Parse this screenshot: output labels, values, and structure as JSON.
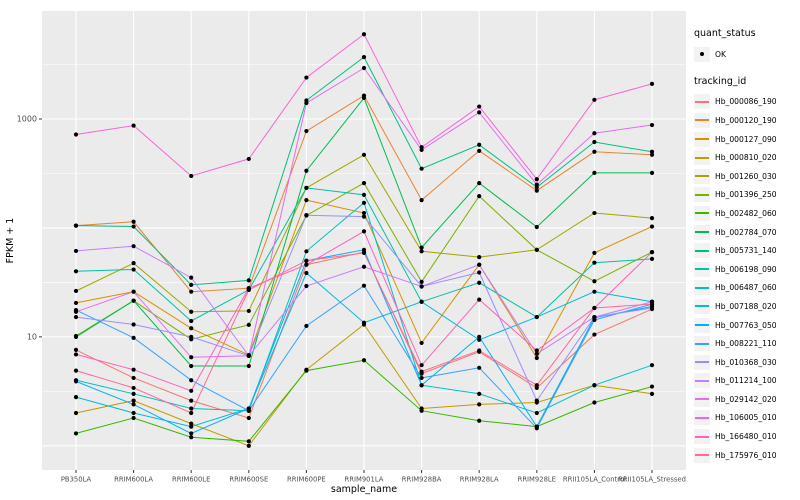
{
  "chart_data": {
    "type": "line",
    "title": "",
    "xlabel": "sample_name",
    "ylabel": "FPKM + 1",
    "y_scale": "log10",
    "y_tick_labels": [
      "10",
      "1000"
    ],
    "y_ticks": [
      10,
      1000
    ],
    "y_major_gridlines": [
      1,
      10,
      100,
      1000
    ],
    "y_minor_gridlines": [
      3.162,
      31.62,
      316.2,
      3162
    ],
    "ylim": [
      0.6,
      9800
    ],
    "grid": true,
    "legend_position": "right",
    "panel_bg": "#EBEBEB",
    "grid_color": "#FFFFFF",
    "point_color": "#000000",
    "tick_label_color": "#4D4D4D",
    "axis_title_color": "#000000",
    "categories": [
      "PB350LA",
      "RRIM600LA",
      "RRIM600LE",
      "RRIM600SE",
      "RRIM600PE",
      "RRIM901LA",
      "RRIM928BA",
      "RRIM928LA",
      "RRIM928LE",
      "RRII105LA_Control",
      "RRII105LA_Stressed"
    ],
    "series": [
      {
        "name": "Hb_000086_190",
        "color": "#F8766D",
        "values": [
          7.6,
          4.2,
          2.6,
          1.8,
          46,
          60,
          4.6,
          7.3,
          3.4,
          10.5,
          18
        ]
      },
      {
        "name": "Hb_000120_190",
        "color": "#EA8331",
        "values": [
          105,
          114,
          26,
          28,
          775,
          1640,
          180,
          510,
          220,
          500,
          470
        ]
      },
      {
        "name": "Hb_000127_090",
        "color": "#D89000",
        "values": [
          20.5,
          26,
          12,
          6.8,
          180,
          137,
          8.8,
          46,
          6.4,
          59,
          103
        ]
      },
      {
        "name": "Hb_000810_020",
        "color": "#C09B00",
        "values": [
          2.0,
          2.6,
          1.6,
          1.0,
          5.0,
          13,
          2.2,
          2.4,
          2.5,
          3.6,
          3.0
        ]
      },
      {
        "name": "Hb_001260_030",
        "color": "#A3A500",
        "values": [
          26.4,
          47.5,
          17,
          17.3,
          233,
          469,
          61,
          54,
          63,
          137,
          123
        ]
      },
      {
        "name": "Hb_001396_250",
        "color": "#7CAE00",
        "values": [
          10.2,
          21.5,
          9.5,
          12.9,
          130,
          258,
          32,
          196,
          63,
          32.4,
          60
        ]
      },
      {
        "name": "Hb_002482_060",
        "color": "#39B600",
        "values": [
          1.3,
          1.8,
          1.2,
          1.1,
          4.9,
          6.1,
          2.1,
          1.7,
          1.5,
          2.5,
          3.5
        ]
      },
      {
        "name": "Hb_002784_070",
        "color": "#00BB4E",
        "values": [
          10,
          21.5,
          5.4,
          5.4,
          335,
          1560,
          66,
          258,
          102,
          320,
          320
        ]
      },
      {
        "name": "Hb_005731_140",
        "color": "#00BF7D",
        "values": [
          105,
          103,
          30,
          33,
          1480,
          3700,
          350,
          580,
          236,
          615,
          500
        ]
      },
      {
        "name": "Hb_006198_090",
        "color": "#00C1A3",
        "values": [
          40,
          41.5,
          14,
          27,
          233,
          201,
          21,
          31.4,
          15.2,
          48,
          52
        ]
      },
      {
        "name": "Hb_006487_060",
        "color": "#00BFC4",
        "values": [
          4.0,
          3.0,
          2.2,
          2.1,
          61,
          170,
          3.6,
          3.0,
          2.0,
          3.6,
          5.5
        ]
      },
      {
        "name": "Hb_007188_020",
        "color": "#00BAE0",
        "values": [
          2.8,
          2.0,
          1.5,
          2.2,
          38.6,
          13.5,
          21,
          9.4,
          15.2,
          26,
          21
        ]
      },
      {
        "name": "Hb_007763_050",
        "color": "#00B0F6",
        "values": [
          3.9,
          2.4,
          1.3,
          2.2,
          50,
          63,
          3.6,
          10,
          1.5,
          15,
          19
        ]
      },
      {
        "name": "Hb_008221_110",
        "color": "#35A2FF",
        "values": [
          17.6,
          9.8,
          4.0,
          2.1,
          12.6,
          29.5,
          4.2,
          5.2,
          1.45,
          14.3,
          20
        ]
      },
      {
        "name": "Hb_010368_030",
        "color": "#9590FF",
        "values": [
          15.2,
          13,
          10,
          6.7,
          131,
          127,
          29,
          39,
          2.6,
          15.2,
          18.4
        ]
      },
      {
        "name": "Hb_011214_100",
        "color": "#C77CFF",
        "values": [
          61.5,
          68,
          35,
          6.7,
          29.3,
          44,
          29,
          46,
          7.0,
          15.2,
          21
        ]
      },
      {
        "name": "Hb_029142_020",
        "color": "#E76BF3",
        "values": [
          17,
          26,
          6.5,
          6.7,
          1400,
          2940,
          520,
          1150,
          250,
          740,
          880
        ]
      },
      {
        "name": "Hb_106005_010",
        "color": "#FA62DB",
        "values": [
          720,
          870,
          300,
          430,
          2400,
          6000,
          550,
          1300,
          280,
          1500,
          2100
        ]
      },
      {
        "name": "Hb_166480_010",
        "color": "#FF62BC",
        "values": [
          6.9,
          5.0,
          3.2,
          28,
          46,
          93,
          5.5,
          22,
          7.5,
          18.4,
          60
        ]
      },
      {
        "name": "Hb_175976_010",
        "color": "#FF6A98",
        "values": [
          4.9,
          3.4,
          2.0,
          27,
          50,
          59,
          4.8,
          7.5,
          3.6,
          18.4,
          20
        ]
      }
    ]
  },
  "legend": {
    "quant_title": "quant_status",
    "quant_items": [
      {
        "label": "OK",
        "marker": "point-icon"
      }
    ],
    "tracking_title": "tracking_id"
  }
}
